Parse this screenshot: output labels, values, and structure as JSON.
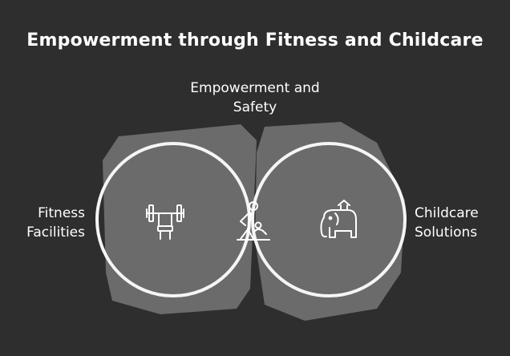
{
  "title": "Empowerment through Fitness and Childcare",
  "labels": {
    "top": [
      "Empowerment and",
      "Safety"
    ],
    "left": [
      "Fitness",
      "Facilities"
    ],
    "right": [
      "Childcare",
      "Solutions"
    ]
  },
  "icons": {
    "left": "bench-press-icon",
    "center": "parent-child-care-icon",
    "right": "toy-elephant-icon"
  },
  "colors": {
    "background": "#2e2e2e",
    "circle_fill": "#6b6b6b",
    "intersection_fill": "#3b6e80",
    "outline": "#f5f5f5"
  }
}
